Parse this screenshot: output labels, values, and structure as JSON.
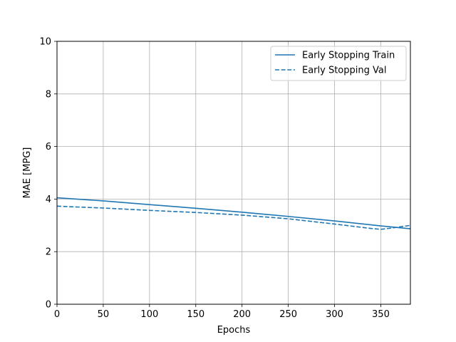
{
  "chart_data": {
    "type": "line",
    "xlabel": "Epochs",
    "ylabel": "MAE [MPG]",
    "xlim": [
      0,
      382
    ],
    "ylim": [
      0,
      10
    ],
    "xticks": [
      0,
      50,
      100,
      150,
      200,
      250,
      300,
      350
    ],
    "yticks": [
      0,
      2,
      4,
      6,
      8,
      10
    ],
    "grid": true,
    "legend_position": "top-right",
    "series": [
      {
        "name": "Early Stopping Train",
        "style": "solid",
        "color": "#1f77b4",
        "x": [
          0,
          50,
          100,
          150,
          200,
          250,
          300,
          350,
          382
        ],
        "y": [
          4.05,
          3.93,
          3.79,
          3.65,
          3.5,
          3.34,
          3.17,
          2.98,
          2.87
        ]
      },
      {
        "name": "Early Stopping Val",
        "style": "dashed",
        "color": "#1f77b4",
        "x": [
          0,
          50,
          100,
          150,
          200,
          250,
          300,
          340,
          350,
          360,
          382
        ],
        "y": [
          3.73,
          3.66,
          3.57,
          3.49,
          3.39,
          3.25,
          3.05,
          2.88,
          2.85,
          2.89,
          3.0
        ]
      }
    ]
  }
}
